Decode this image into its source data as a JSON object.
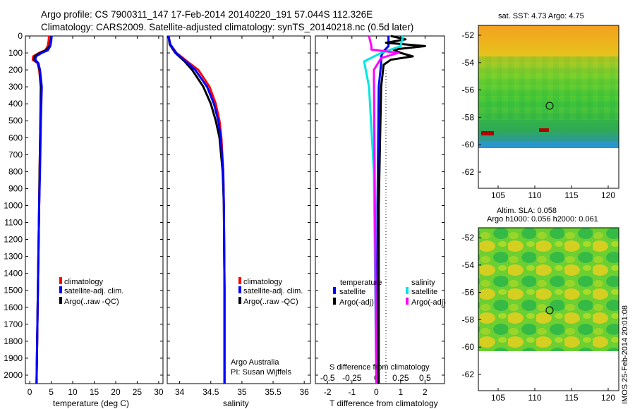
{
  "header": {
    "line1": "Argo profile: CS 7900311_147 17-Feb-2014 20140220_191 57.044S 112.326E",
    "line2": "Climatology: CARS2009. Satellite-adjusted climatology: synTS_20140218.nc (0.5d later)"
  },
  "colors": {
    "climatology": "#ff0000",
    "satellite": "#0000ff",
    "argo": "#000000",
    "sal_satellite": "#00e5e5",
    "sal_argo": "#ff00ff",
    "sal_clim_dotted": "#000000"
  },
  "chart_data": [
    {
      "type": "line",
      "panel": "temperature",
      "xlabel": "temperature (deg C)",
      "ylim": [
        2050,
        0
      ],
      "xlim": [
        -1,
        31
      ],
      "xticks": [
        0,
        5,
        10,
        15,
        20,
        25,
        30
      ],
      "yticks": [
        0,
        100,
        200,
        300,
        400,
        500,
        600,
        700,
        800,
        900,
        1000,
        1100,
        1200,
        1300,
        1400,
        1500,
        1600,
        1700,
        1800,
        1900,
        2000
      ],
      "legend": [
        "climatology",
        "satellite-adj. clim.",
        "Argo(..raw -QC)"
      ],
      "series": [
        {
          "name": "climatology",
          "depth": [
            0,
            30,
            60,
            85,
            100,
            120,
            140,
            160,
            200,
            300,
            500,
            800,
            1000,
            1500,
            2050
          ],
          "values": [
            4.5,
            4.4,
            4.2,
            3.6,
            2.2,
            0.8,
            0.7,
            1.8,
            2.2,
            2.6,
            2.5,
            2.3,
            2.2,
            1.9,
            1.6
          ]
        },
        {
          "name": "satellite-adj. clim.",
          "depth": [
            0,
            30,
            60,
            85,
            100,
            120,
            140,
            160,
            200,
            300,
            500,
            800,
            1000,
            1500,
            2050
          ],
          "values": [
            5.0,
            4.9,
            4.6,
            3.8,
            2.4,
            1.2,
            1.0,
            2.0,
            2.3,
            2.6,
            2.5,
            2.3,
            2.2,
            1.9,
            1.6
          ]
        },
        {
          "name": "Argo(..raw -QC)",
          "depth": [
            0,
            30,
            60,
            85,
            100,
            120,
            140,
            160,
            200,
            300,
            500,
            800,
            1000,
            1500,
            2050
          ],
          "values": [
            5.1,
            5.0,
            4.8,
            4.2,
            2.8,
            1.5,
            1.3,
            2.0,
            2.4,
            2.8,
            2.6,
            2.4,
            2.2,
            1.9,
            1.6
          ]
        }
      ]
    },
    {
      "type": "line",
      "panel": "salinity",
      "xlabel": "salinity",
      "ylim": [
        2050,
        0
      ],
      "xlim": [
        33.8,
        36.1
      ],
      "xticks": [
        34,
        34.5,
        35,
        35.5,
        36
      ],
      "legend": [
        "climatology",
        "satellite-adj. clim.",
        "Argo(..raw -QC)"
      ],
      "annotation": [
        "Argo Australia",
        "PI: Susan Wijffels"
      ],
      "series": [
        {
          "name": "climatology",
          "depth": [
            0,
            50,
            100,
            150,
            200,
            300,
            400,
            500,
            600,
            800,
            1000,
            1500,
            2050
          ],
          "values": [
            33.82,
            33.85,
            33.95,
            34.12,
            34.3,
            34.48,
            34.58,
            34.64,
            34.67,
            34.7,
            34.71,
            34.72,
            34.72
          ]
        },
        {
          "name": "satellite-adj. clim.",
          "depth": [
            0,
            50,
            100,
            150,
            200,
            300,
            400,
            500,
            600,
            800,
            1000,
            1500,
            2050
          ],
          "values": [
            33.82,
            33.84,
            33.93,
            34.08,
            34.2,
            34.38,
            34.5,
            34.58,
            34.64,
            34.69,
            34.71,
            34.72,
            34.72
          ]
        },
        {
          "name": "Argo(..raw -QC)",
          "depth": [
            0,
            50,
            100,
            150,
            200,
            300,
            400,
            500,
            600,
            800,
            1000,
            1500,
            2050
          ],
          "values": [
            33.82,
            33.85,
            33.94,
            34.1,
            34.25,
            34.44,
            34.55,
            34.62,
            34.66,
            34.7,
            34.71,
            34.72,
            34.72
          ]
        }
      ]
    },
    {
      "type": "line",
      "panel": "difference",
      "xlabel": "T difference from climatology",
      "xlabel_top": "S difference from climatology",
      "ylim": [
        2050,
        0
      ],
      "xlim": [
        -2.5,
        2.8
      ],
      "xticks": [
        -2,
        -1,
        0,
        1,
        2
      ],
      "xticks_top": [
        "-0.5",
        "-0.25",
        "0",
        "0.25",
        "0.5"
      ],
      "legend_titles": [
        "temperature",
        "salinity"
      ],
      "legend": [
        "satellite",
        "Argo(-adj)",
        "satellite",
        "Argo(-adj)"
      ],
      "series": [
        {
          "name": "satellite",
          "group": "temperature",
          "depth": [
            0,
            60,
            90,
            120,
            160,
            300,
            1000,
            2050
          ],
          "values": [
            0.5,
            0.5,
            0.3,
            0.2,
            0.2,
            0.1,
            0.05,
            0.05
          ]
        },
        {
          "name": "Argo(-adj)",
          "group": "temperature",
          "depth": [
            0,
            20,
            40,
            60,
            80,
            100,
            120,
            140,
            170,
            300,
            1000,
            2050
          ],
          "values": [
            0.6,
            1.2,
            0.4,
            2.0,
            0.7,
            1.0,
            1.5,
            0.6,
            0.3,
            0.2,
            0.1,
            0.1
          ]
        },
        {
          "name": "satellite",
          "group": "salinity",
          "depth": [
            0,
            60,
            100,
            150,
            300,
            800,
            2050
          ],
          "values": [
            1.1,
            1.0,
            0.2,
            -0.5,
            -0.3,
            -0.1,
            0
          ]
        },
        {
          "name": "Argo(-adj)",
          "group": "salinity",
          "depth": [
            0,
            60,
            80,
            100,
            130,
            200,
            2050
          ],
          "values": [
            -0.3,
            -0.2,
            -0.2,
            0.9,
            0.2,
            -0.1,
            0
          ]
        }
      ]
    }
  ],
  "maps": {
    "sst": {
      "title": "sat. SST: 4.73 Argo: 4.75",
      "yticks": [
        "-52",
        "-54",
        "-56",
        "-58",
        "-60",
        "-62"
      ],
      "xticks": [
        "105",
        "110",
        "115",
        "120"
      ]
    },
    "sla": {
      "title1": "Altim. SLA: 0.058",
      "title2": "Argo h1000: 0.056 h2000: 0.061",
      "yticks": [
        "-52",
        "-54",
        "-56",
        "-58",
        "-60",
        "-62"
      ],
      "xticks": [
        "105",
        "110",
        "115",
        "120"
      ]
    }
  },
  "credit": "IMOS 25-Feb-2014 20:01:08"
}
